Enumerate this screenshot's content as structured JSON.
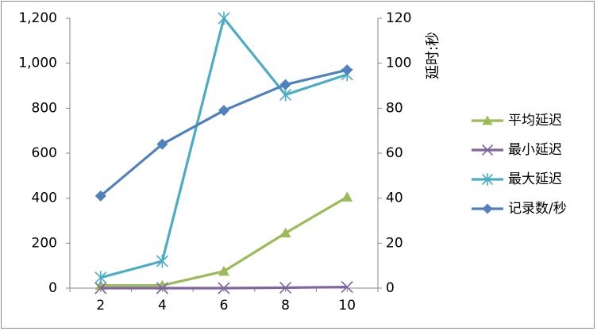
{
  "chart_data": {
    "type": "line",
    "x": [
      2,
      4,
      6,
      8,
      10
    ],
    "y_left_ticks": [
      "0",
      "200",
      "400",
      "600",
      "800",
      "1,000",
      "1,200"
    ],
    "y_right_ticks": [
      "0",
      "20",
      "40",
      "60",
      "80",
      "100",
      "120"
    ],
    "ylim_left": [
      0,
      1200
    ],
    "ylim_right": [
      0,
      120
    ],
    "ylabel_right": "延时:秒",
    "grid": false,
    "legend_position": "right",
    "series": [
      {
        "name": "平均延迟",
        "axis": "right",
        "color": "#9bbb59",
        "marker": "triangle",
        "values": [
          1.2,
          1.2,
          7.5,
          24.5,
          40.5
        ]
      },
      {
        "name": "最小延迟",
        "axis": "right",
        "color": "#8064a2",
        "marker": "x",
        "values": [
          0,
          0,
          0,
          0.2,
          0.5
        ]
      },
      {
        "name": "最大延迟",
        "axis": "right",
        "color": "#4bacc6",
        "marker": "star",
        "values": [
          4.7,
          12,
          120,
          86,
          95
        ]
      },
      {
        "name": "记录数/秒",
        "axis": "left",
        "color": "#4f81bd",
        "marker": "diamond",
        "values": [
          410,
          640,
          790,
          905,
          970
        ]
      }
    ]
  }
}
